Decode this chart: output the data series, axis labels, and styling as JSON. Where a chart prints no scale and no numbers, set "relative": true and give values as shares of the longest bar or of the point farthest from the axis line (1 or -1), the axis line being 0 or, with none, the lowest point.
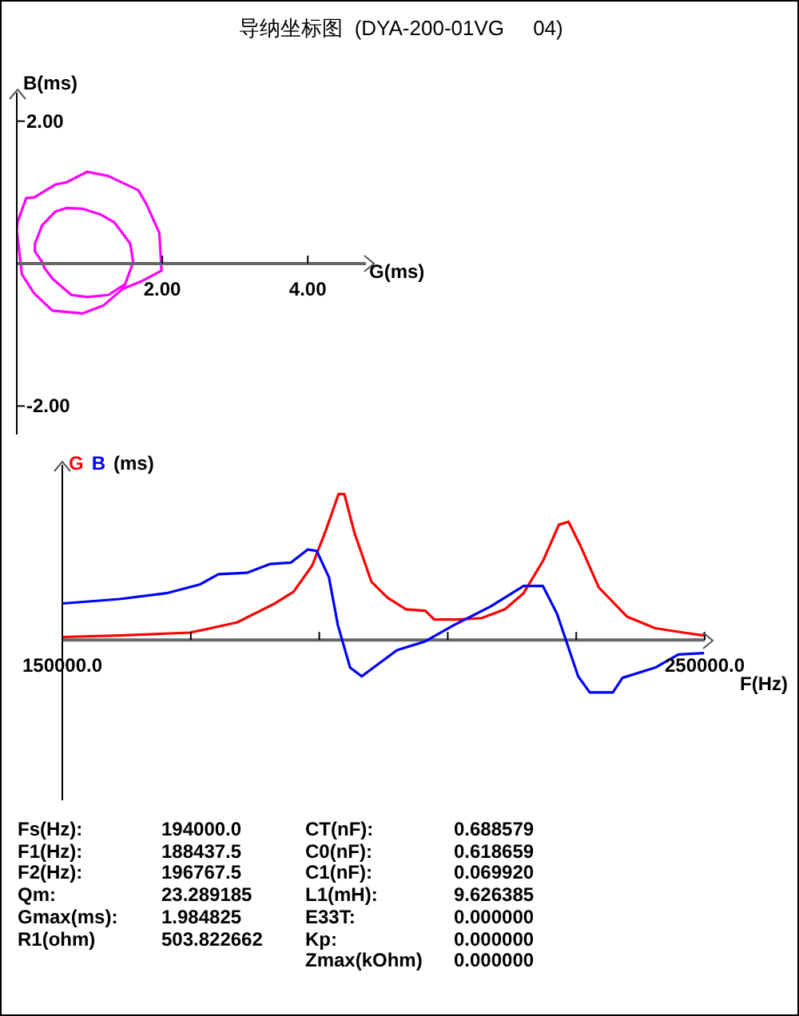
{
  "chart_data": [
    {
      "type": "line",
      "title": "导纳坐标图  (DYA-200-01VG     04)",
      "xlabel": "G(ms)",
      "ylabel": "B(ms)",
      "xlim": [
        0,
        4.8
      ],
      "ylim": [
        -2.4,
        2.4
      ],
      "xticks": [
        {
          "value": 2,
          "label": "2.00"
        },
        {
          "value": 4,
          "label": "4.00"
        }
      ],
      "yticks": [
        {
          "value": 2,
          "label": "2.00"
        },
        {
          "value": -2,
          "label": "-2.00"
        }
      ],
      "series": [
        {
          "color": "#ff00ff",
          "x": [
            1.45,
            1.71,
            1.99,
            1.96,
            1.78,
            1.67,
            1.26,
            0.97,
            0.68,
            0.53,
            0.24,
            0.13,
            0.01,
            0.0,
            0.07,
            0.24,
            0.49,
            0.9,
            1.19,
            1.45,
            1.49,
            1.6,
            1.56,
            1.34,
            1.15,
            0.9,
            0.68,
            0.53,
            0.35,
            0.25,
            0.25,
            0.35,
            0.38,
            0.49,
            0.75,
            0.97,
            1.26,
            1.49
          ],
          "values": [
            -0.36,
            -0.25,
            -0.1,
            0.43,
            0.84,
            1.03,
            1.23,
            1.29,
            1.14,
            1.11,
            0.93,
            0.92,
            0.58,
            0.47,
            -0.15,
            -0.42,
            -0.66,
            -0.7,
            -0.59,
            -0.36,
            -0.29,
            0.02,
            0.28,
            0.58,
            0.69,
            0.77,
            0.78,
            0.73,
            0.54,
            0.28,
            0.17,
            0.02,
            -0.06,
            -0.21,
            -0.44,
            -0.47,
            -0.44,
            -0.29
          ]
        }
      ]
    },
    {
      "type": "line",
      "relative": true,
      "ylabel": "(ms)",
      "xlabel": "F(Hz)",
      "xlim": [
        150000,
        250000
      ],
      "xticks": [
        {
          "value": 150000,
          "label": "150000.0"
        },
        {
          "value": 170000,
          "label": null
        },
        {
          "value": 190000,
          "label": null
        },
        {
          "value": 210000,
          "label": null
        },
        {
          "value": 230000,
          "label": null
        },
        {
          "value": 250000,
          "label": "250000.0"
        }
      ],
      "series": [
        {
          "name": "G",
          "color": "#ff0000",
          "x": [
            150100,
            158900,
            169900,
            177200,
            183100,
            186000,
            188900,
            191100,
            193000,
            193900,
            195500,
            198100,
            200600,
            203500,
            206500,
            207900,
            211600,
            215300,
            218900,
            221800,
            224800,
            227300,
            228800,
            230600,
            233500,
            237900,
            242300,
            246700,
            249900
          ],
          "values": [
            0.02,
            0.03,
            0.05,
            0.12,
            0.25,
            0.33,
            0.51,
            0.76,
            1,
            1,
            0.73,
            0.4,
            0.29,
            0.21,
            0.2,
            0.14,
            0.14,
            0.15,
            0.21,
            0.32,
            0.54,
            0.79,
            0.81,
            0.65,
            0.36,
            0.16,
            0.08,
            0.05,
            0.03
          ]
        },
        {
          "name": "B",
          "color": "#0000ff",
          "x": [
            150100,
            158900,
            166200,
            171400,
            174300,
            178700,
            182300,
            185600,
            188200,
            189600,
            191500,
            192900,
            194800,
            196600,
            202100,
            206500,
            210900,
            216700,
            221800,
            224800,
            227000,
            230300,
            232100,
            235700,
            237200,
            242300,
            245900,
            249900
          ],
          "values": [
            0.25,
            0.28,
            0.32,
            0.38,
            0.45,
            0.46,
            0.52,
            0.53,
            0.62,
            0.61,
            0.43,
            0.1,
            -0.19,
            -0.25,
            -0.07,
            -0.01,
            0.1,
            0.23,
            0.37,
            0.37,
            0.18,
            -0.25,
            -0.36,
            -0.36,
            -0.26,
            -0.19,
            -0.1,
            -0.09
          ]
        }
      ]
    },
    {
      "type": "other",
      "annotations": [
        "Fs(Hz):",
        "194000.0",
        "F1(Hz):",
        "188437.5",
        "F2(Hz):",
        "196767.5",
        "Qm:",
        "23.289185",
        "Gmax(ms):",
        "1.984825",
        "R1(ohm)",
        "503.822662",
        "CT(nF):",
        "0.688579",
        "C0(nF):",
        "0.618659",
        "C1(nF):",
        "0.069920",
        "L1(mH):",
        "9.626385",
        "E33T:",
        "0.000000",
        "Kp:",
        "0.000000",
        "Zmax(kOhm)",
        "0.000000"
      ]
    }
  ]
}
